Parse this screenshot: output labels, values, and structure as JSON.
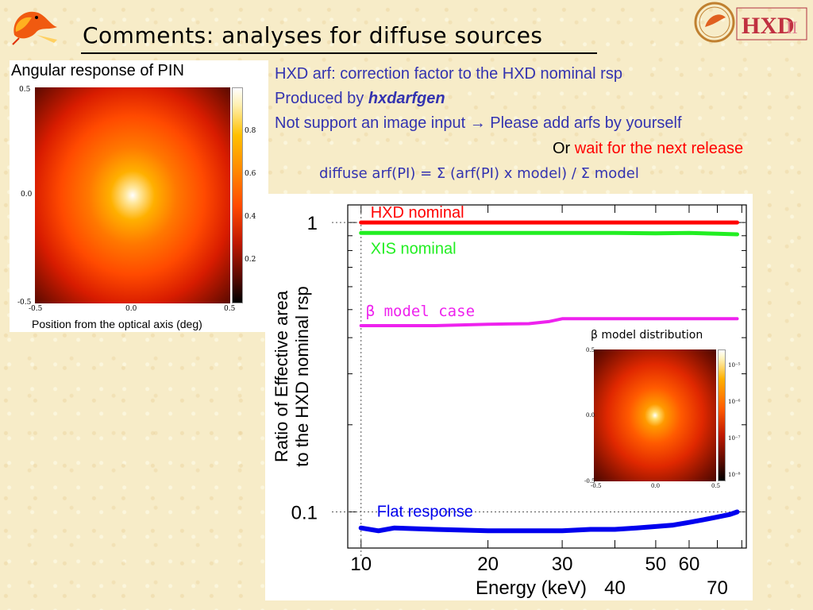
{
  "title": "Comments: analyses for diffuse sources",
  "pin_panel": {
    "title": "Angular response of PIN",
    "xlabel": "Position from the optical axis (deg)",
    "x_ticks": [
      "-0.5",
      "0.0",
      "0.5"
    ],
    "y_ticks": [
      "0.5",
      "0.0",
      "-0.5"
    ],
    "colorbar_ticks": [
      "0.8",
      "0.6",
      "0.4",
      "0.2"
    ]
  },
  "text": {
    "line1": "HXD arf:  correction factor to the HXD nominal rsp",
    "line2_prefix": "Produced by ",
    "line2_tool": "hxdarfgen",
    "line3_a": "Not support an image input ",
    "line3_arrow": "→",
    "line3_b": " Please add arfs by yourself",
    "line4_or": "Or ",
    "line4_release": "wait for the next release",
    "formula": "diffuse arf(PI) = Σ (arf(PI) x model) / Σ model"
  },
  "inset": {
    "title": "β model distribution",
    "x_ticks": [
      "-0.5",
      "0.0",
      "0.5"
    ],
    "y_ticks": [
      "0.5",
      "0.0",
      "-0.5"
    ],
    "colorbar_ticks": [
      "10⁻⁵",
      "10⁻⁶",
      "10⁻⁷",
      "10⁻⁸"
    ]
  },
  "colors": {
    "text_blue": "#3333b0",
    "red": "#ff0000",
    "green": "#22ee22",
    "magenta": "#ee22ee",
    "blue": "#0000ee"
  },
  "chart_data": {
    "type": "line",
    "xlabel": "Energy (keV)",
    "ylabel": "Ratio of Effective area to the HXD nominal rsp",
    "xscale": "log",
    "yscale": "log",
    "xlim": [
      9.3,
      82
    ],
    "ylim": [
      0.075,
      1.15
    ],
    "x_ticks": [
      "10",
      "20",
      "30",
      "40",
      "50",
      "60",
      "70"
    ],
    "x_tick_values": [
      10,
      20,
      30,
      40,
      50,
      60,
      70
    ],
    "y_ticks": [
      "1",
      "0.1"
    ],
    "y_tick_values": [
      1,
      0.1
    ],
    "series": [
      {
        "name": "HXD nominal",
        "color": "#ff0000",
        "x": [
          10,
          20,
          30,
          40,
          50,
          60,
          70,
          78
        ],
        "y": [
          1.0,
          1.0,
          1.0,
          1.0,
          1.0,
          1.0,
          1.0,
          1.0
        ]
      },
      {
        "name": "XIS nominal",
        "color": "#22ee22",
        "x": [
          10,
          15,
          20,
          25,
          30,
          40,
          50,
          60,
          70,
          78
        ],
        "y": [
          0.92,
          0.92,
          0.92,
          0.92,
          0.92,
          0.92,
          0.918,
          0.92,
          0.915,
          0.91
        ]
      },
      {
        "name": "β model case",
        "color": "#ee22ee",
        "x": [
          10,
          15,
          20,
          25,
          28,
          30,
          35,
          40,
          50,
          60,
          70,
          78
        ],
        "y": [
          0.44,
          0.44,
          0.445,
          0.447,
          0.455,
          0.465,
          0.465,
          0.465,
          0.465,
          0.465,
          0.465,
          0.465
        ]
      },
      {
        "name": "Flat response",
        "color": "#0000ee",
        "x": [
          10,
          11,
          12,
          15,
          20,
          25,
          30,
          35,
          40,
          45,
          50,
          55,
          60,
          65,
          70,
          75,
          78
        ],
        "y": [
          0.088,
          0.086,
          0.088,
          0.087,
          0.086,
          0.086,
          0.086,
          0.087,
          0.087,
          0.088,
          0.089,
          0.09,
          0.092,
          0.094,
          0.096,
          0.098,
          0.1
        ]
      }
    ]
  }
}
